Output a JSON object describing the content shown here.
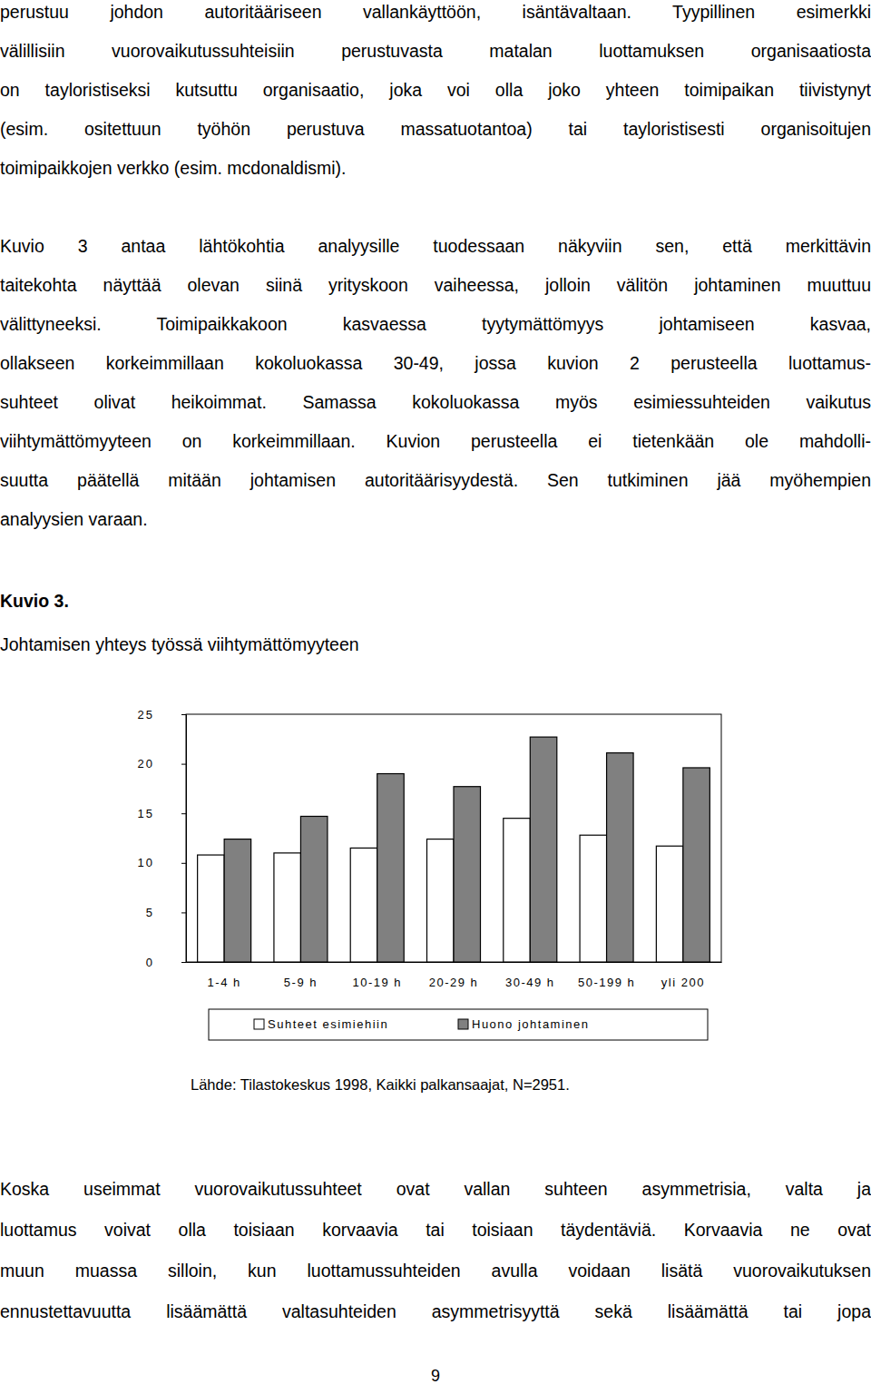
{
  "paragraphs_before": [
    [
      "perustuu johdon autoritääriseen vallankäyttöön, isäntävaltaan. Tyypillinen esimerkki",
      "välillisiin vuorovaikutussuhteisiin perustuvasta matalan luottamuksen organisaatiosta",
      "on tayloristiseksi kutsuttu organisaatio, joka voi olla joko yhteen toimipaikan tiivistynyt",
      "(esim. ositettuun työhön perustuva massatuotantoa) tai tayloristisesti organisoitujen",
      "toimipaikkojen verkko (esim. mcdonaldismi)."
    ],
    [
      "Kuvio 3 antaa lähtökohtia analyysille tuodessaan näkyviin sen, että merkittävin",
      "taitekohta näyttää olevan siinä yrityskoon vaiheessa, jolloin välitön johtaminen muuttuu",
      "välittyneeksi. Toimipaikkakoon kasvaessa tyytymättömyys johtamiseen kasvaa,",
      "ollakseen korkeimmillaan kokoluokassa 30-49, jossa kuvion 2 perusteella luottamus-",
      "suhteet olivat heikoimmat. Samassa kokoluokassa myös esimiessuhteiden vaikutus",
      "viihtymättömyyteen on korkeimmillaan. Kuvion perusteella ei tietenkään ole mahdolli-",
      "suutta päätellä mitään johtamisen autoritäärisyydestä. Sen tutkiminen jää myöhempien",
      "analyysien varaan."
    ]
  ],
  "figure_label": "Kuvio 3.",
  "chart_data": {
    "type": "bar",
    "title": "Johtamisen yhteys työssä viihtymättömyyteen",
    "categories": [
      "1-4 h",
      "5-9 h",
      "10-19 h",
      "20-29 h",
      "30-49 h",
      "50-199 h",
      "yli 200"
    ],
    "series": [
      {
        "name": "Suhteet esimiehiin",
        "color": "#ffffff",
        "values": [
          10.8,
          11.0,
          11.5,
          12.4,
          14.5,
          12.8,
          11.7
        ]
      },
      {
        "name": "Huono johtaminen",
        "color": "#808080",
        "values": [
          12.4,
          14.7,
          19.0,
          17.7,
          22.7,
          21.1,
          19.6
        ]
      }
    ],
    "ylim": [
      0,
      25
    ],
    "yticks": [
      0,
      5,
      10,
      15,
      20,
      25
    ],
    "grid": false,
    "legend": "bottom"
  },
  "source": "Lähde: Tilastokeskus 1998, Kaikki palkansaajat, N=2951.",
  "paragraphs_after": [
    [
      "Koska useimmat vuorovaikutussuhteet ovat vallan suhteen asymmetrisia, valta ja",
      "luottamus voivat olla toisiaan korvaavia tai toisiaan täydentäviä. Korvaavia ne ovat",
      "muun muassa silloin, kun luottamussuhteiden avulla voidaan lisätä vuorovaikutuksen",
      "ennustettavuutta lisäämättä valtasuhteiden asymmetrisyyttä sekä lisäämättä tai jopa"
    ]
  ],
  "page_number": "9"
}
